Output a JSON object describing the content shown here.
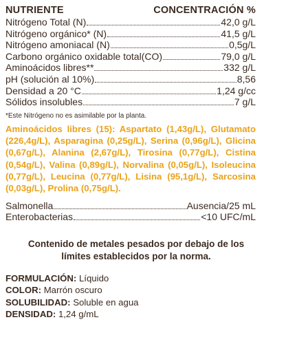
{
  "header": {
    "left": "NUTRIENTE",
    "right": "CONCENTRACIÓN %"
  },
  "nutrients": [
    {
      "label": "Nitrógeno Total (N)",
      "value": "42,0 g/L"
    },
    {
      "label": "Nitrógeno orgánico* (N)",
      "value": "41,5 g/L"
    },
    {
      "label": "Nitrógeno amoniacal (N)",
      "value": "0,5g/L"
    },
    {
      "label": "Carbono orgánico oxidable total(CO)",
      "value": "79,0 g/L"
    },
    {
      "label": "Aminoácidos libres**",
      "value": "332 g/L"
    },
    {
      "label": "pH (solución al 10%)",
      "value": "8,56"
    },
    {
      "label": "Densidad a 20 °C",
      "value": "1,24 g/cc"
    },
    {
      "label": "Sólidos insolubles",
      "value": "7 g/L"
    }
  ],
  "footnote": "*Este Nitrógeno no es asimilable por la planta.",
  "amino_acids": "Aminoácidos libres (15): Aspartato (1,43g/L), Glutamato (226,4g/L), Asparagina (0,25g/L), Serina (0,96g/L), Glicina (0,67g/L), Alanina (2,67g/L), Tirosina (0,77g/L), Cistina (0,54g/L), Valina (0,89g/L), Norvalina (0,05g/L), Isoleucina (0,77g/L), Leucina (0,77g/L), Lisina (95,1g/L), Sarcosina (0,03g/L), Prolina (0,75g/L).",
  "microbiology": [
    {
      "label": "Salmonella",
      "value": "Ausencia/25 mL"
    },
    {
      "label": "Enterobacterias",
      "value": "<10 UFC/mL"
    }
  ],
  "metals_note": "Contenido de metales pesados por debajo de los límites establecidos por la norma.",
  "properties": [
    {
      "label": "FORMULACIÓN:",
      "value": "Líquido"
    },
    {
      "label": "COLOR:",
      "value": "Marrón oscuro"
    },
    {
      "label": "SOLUBILIDAD:",
      "value": "Soluble en agua"
    },
    {
      "label": "DENSIDAD:",
      "value": "1,24 g/mL"
    }
  ]
}
